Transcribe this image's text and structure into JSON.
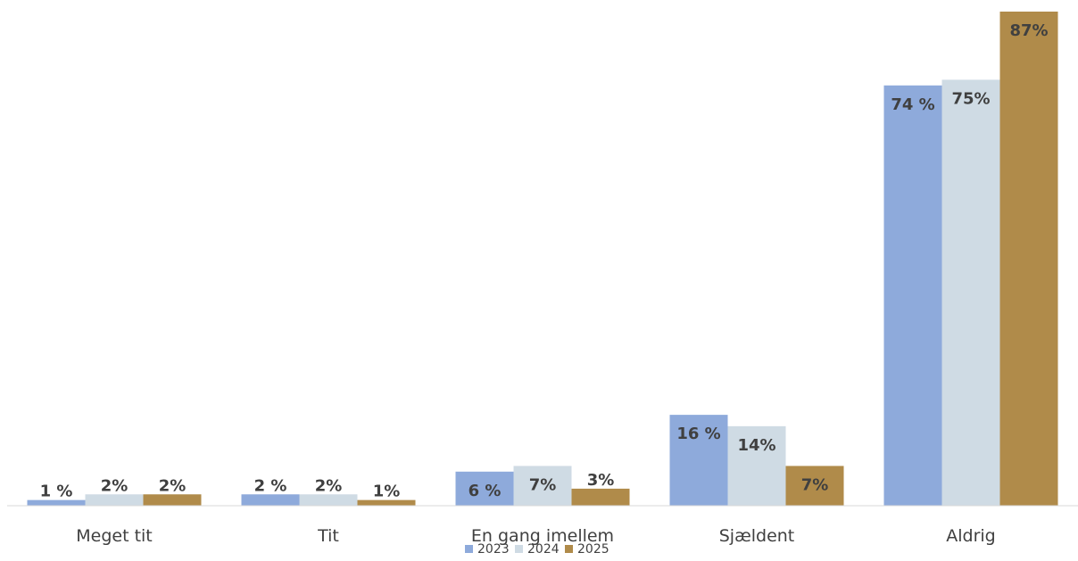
{
  "chart_data": {
    "type": "bar",
    "categories": [
      "Meget tit",
      "Tit",
      "En gang imellem",
      "Sjældent",
      "Aldrig"
    ],
    "series": [
      {
        "name": "2023",
        "color": "#8eaadb",
        "values": [
          1,
          2,
          6,
          16,
          74
        ],
        "labels": [
          "1 %",
          "2 %",
          "6 %",
          "16 %",
          "74 %"
        ]
      },
      {
        "name": "2024",
        "color": "#cfdbe4",
        "values": [
          2,
          2,
          7,
          14,
          75
        ],
        "labels": [
          "2%",
          "2%",
          "7%",
          "14%",
          "75%"
        ]
      },
      {
        "name": "2025",
        "color": "#b08b4a",
        "values": [
          2,
          1,
          3,
          7,
          87
        ],
        "labels": [
          "2%",
          "1%",
          "3%",
          "7%",
          "87%"
        ]
      }
    ],
    "ylim": [
      0,
      87
    ],
    "grid": false,
    "legend_position": "bottom",
    "title": "",
    "xlabel": "",
    "ylabel": ""
  }
}
